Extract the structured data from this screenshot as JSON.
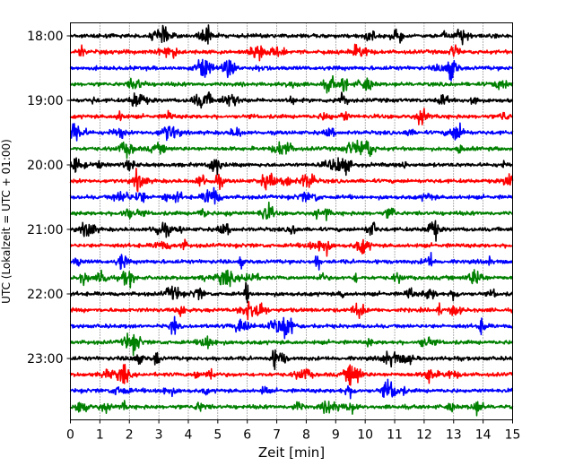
{
  "chart_data": {
    "type": "line",
    "subtype": "helicorder",
    "xlabel": "Zeit  [min]",
    "ylabel": "UTC (Lokalzeit = UTC + 01:00)",
    "xlim": [
      0,
      15
    ],
    "x_ticks": [
      "0",
      "1",
      "2",
      "3",
      "4",
      "5",
      "6",
      "7",
      "8",
      "9",
      "10",
      "11",
      "12",
      "13",
      "14",
      "15"
    ],
    "row_minutes": 15,
    "grid": "vertical dotted at each minute",
    "trace_colors": [
      "#000000",
      "#ff0000",
      "#0000ff",
      "#008000"
    ],
    "rows": [
      {
        "start": "18:00",
        "color": "#000000"
      },
      {
        "start": "18:15",
        "color": "#ff0000"
      },
      {
        "start": "18:30",
        "color": "#0000ff"
      },
      {
        "start": "18:45",
        "color": "#008000"
      },
      {
        "start": "19:00",
        "color": "#000000"
      },
      {
        "start": "19:15",
        "color": "#ff0000"
      },
      {
        "start": "19:30",
        "color": "#0000ff"
      },
      {
        "start": "19:45",
        "color": "#008000"
      },
      {
        "start": "20:00",
        "color": "#000000"
      },
      {
        "start": "20:15",
        "color": "#ff0000"
      },
      {
        "start": "20:30",
        "color": "#0000ff"
      },
      {
        "start": "20:45",
        "color": "#008000"
      },
      {
        "start": "21:00",
        "color": "#000000"
      },
      {
        "start": "21:15",
        "color": "#ff0000"
      },
      {
        "start": "21:30",
        "color": "#0000ff"
      },
      {
        "start": "21:45",
        "color": "#008000"
      },
      {
        "start": "22:00",
        "color": "#000000"
      },
      {
        "start": "22:15",
        "color": "#ff0000"
      },
      {
        "start": "22:30",
        "color": "#0000ff"
      },
      {
        "start": "22:45",
        "color": "#008000"
      },
      {
        "start": "23:00",
        "color": "#000000"
      },
      {
        "start": "23:15",
        "color": "#ff0000"
      },
      {
        "start": "23:30",
        "color": "#0000ff"
      },
      {
        "start": "23:45",
        "color": "#008000"
      }
    ],
    "y_tick_labels": [
      "18:00",
      "19:00",
      "20:00",
      "21:00",
      "22:00",
      "23:00"
    ]
  }
}
